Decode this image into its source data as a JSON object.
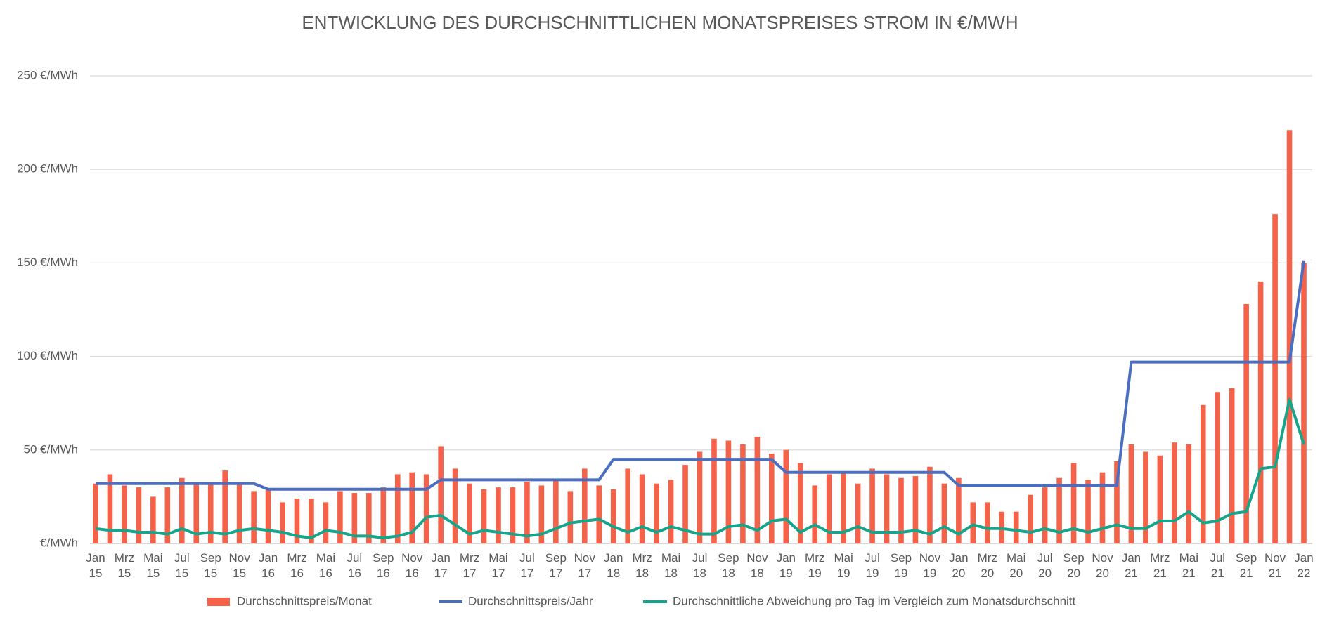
{
  "chart_data": {
    "type": "combo",
    "title": "ENTWICKLUNG DES DURCHSCHNITTLICHEN MONATSPREISES  STROM IN €/MWH",
    "categories": [
      "Jan\n15",
      null,
      "Mrz\n15",
      null,
      "Mai\n15",
      null,
      "Jul\n15",
      null,
      "Sep\n15",
      null,
      "Nov\n15",
      null,
      "Jan\n16",
      null,
      "Mrz\n16",
      null,
      "Mai\n16",
      null,
      "Jul\n16",
      null,
      "Sep\n16",
      null,
      "Nov\n16",
      null,
      "Jan\n17",
      null,
      "Mrz\n17",
      null,
      "Mai\n17",
      null,
      "Jul\n17",
      null,
      "Sep\n17",
      null,
      "Nov\n17",
      null,
      "Jan\n18",
      null,
      "Mrz\n18",
      null,
      "Mai\n18",
      null,
      "Jul\n18",
      null,
      "Sep\n18",
      null,
      "Nov\n18",
      null,
      "Jan\n19",
      null,
      "Mrz\n19",
      null,
      "Mai\n19",
      null,
      "Jul\n19",
      null,
      "Sep\n19",
      null,
      "Nov\n19",
      null,
      "Jan\n20",
      null,
      "Mrz\n20",
      null,
      "Mai\n20",
      null,
      "Jul\n20",
      null,
      "Sep\n20",
      null,
      "Nov\n20",
      null,
      "Jan\n21",
      null,
      "Mrz\n21",
      null,
      "Mai\n21",
      null,
      "Jul\n21",
      null,
      "Sep\n21",
      null,
      "Nov\n21",
      null,
      "Jan\n22"
    ],
    "series": [
      {
        "name": "Durchschnittspreis/Monat",
        "type": "bar",
        "color": "#f4624a",
        "values": [
          32,
          37,
          31,
          30,
          25,
          30,
          35,
          32,
          32,
          39,
          32,
          28,
          29,
          22,
          24,
          24,
          22,
          28,
          27,
          27,
          30,
          37,
          38,
          37,
          52,
          40,
          32,
          29,
          30,
          30,
          33,
          31,
          34,
          28,
          40,
          31,
          29,
          40,
          37,
          32,
          34,
          42,
          49,
          56,
          55,
          53,
          57,
          48,
          50,
          43,
          31,
          37,
          38,
          32,
          40,
          37,
          35,
          36,
          41,
          32,
          35,
          22,
          22,
          17,
          17,
          26,
          30,
          35,
          43,
          34,
          38,
          44,
          53,
          49,
          47,
          54,
          53,
          74,
          81,
          83,
          128,
          140,
          176,
          221,
          150
        ]
      },
      {
        "name": "Durchschnittspreis/Jahr",
        "type": "line",
        "color": "#4a6fc2",
        "values": [
          32,
          32,
          32,
          32,
          32,
          32,
          32,
          32,
          32,
          32,
          32,
          32,
          29,
          29,
          29,
          29,
          29,
          29,
          29,
          29,
          29,
          29,
          29,
          29,
          34,
          34,
          34,
          34,
          34,
          34,
          34,
          34,
          34,
          34,
          34,
          34,
          45,
          45,
          45,
          45,
          45,
          45,
          45,
          45,
          45,
          45,
          45,
          45,
          38,
          38,
          38,
          38,
          38,
          38,
          38,
          38,
          38,
          38,
          38,
          38,
          31,
          31,
          31,
          31,
          31,
          31,
          31,
          31,
          31,
          31,
          31,
          31,
          97,
          97,
          97,
          97,
          97,
          97,
          97,
          97,
          97,
          97,
          97,
          97,
          151
        ]
      },
      {
        "name": "Durchschnittliche Abweichung pro Tag im Vergleich zum Monatsdurchschnitt",
        "type": "line",
        "color": "#14a58a",
        "values": [
          8,
          7,
          7,
          6,
          6,
          5,
          8,
          5,
          6,
          5,
          7,
          8,
          7,
          6,
          4,
          3,
          7,
          6,
          4,
          4,
          3,
          4,
          6,
          14,
          15,
          10,
          5,
          7,
          6,
          5,
          4,
          5,
          8,
          11,
          12,
          13,
          9,
          6,
          9,
          6,
          9,
          7,
          5,
          5,
          9,
          10,
          7,
          12,
          13,
          6,
          10,
          6,
          6,
          9,
          6,
          6,
          6,
          7,
          5,
          9,
          5,
          10,
          8,
          8,
          7,
          6,
          8,
          6,
          8,
          6,
          8,
          10,
          8,
          8,
          12,
          12,
          17,
          11,
          12,
          16,
          17,
          40,
          41,
          77,
          53
        ]
      }
    ],
    "ylim": [
      0,
      250
    ],
    "yticks": [
      {
        "value": 0,
        "label": "€/MWh"
      },
      {
        "value": 50,
        "label": "50 €/MWh"
      },
      {
        "value": 100,
        "label": "100 €/MWh"
      },
      {
        "value": 150,
        "label": "150 €/MWh"
      },
      {
        "value": 200,
        "label": "200 €/MWh"
      },
      {
        "value": 250,
        "label": "250 €/MWh"
      }
    ],
    "grid": true,
    "legend": "bottom"
  }
}
